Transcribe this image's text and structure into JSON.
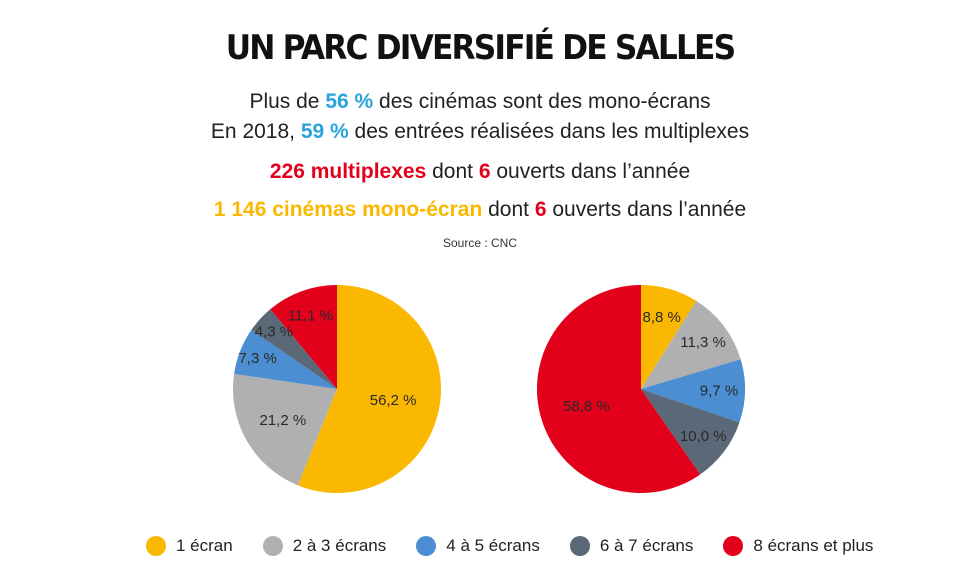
{
  "header": {
    "title": "UN PARC DIVERSIFIÉ DE SALLES",
    "line1": {
      "pre": "Plus de ",
      "highlight": "56 %",
      "post": " des cinémas sont des mono-écrans"
    },
    "line2": {
      "pre": "En 2018, ",
      "highlight": "59 %",
      "post": " des entrées réalisées dans les multiplexes"
    },
    "line3": {
      "highlight": "226 multiplexes",
      "mid": " dont ",
      "count": "6",
      "post": " ouverts dans l’année"
    },
    "line4": {
      "highlight": "1 146 cinémas mono-écran",
      "mid": " dont ",
      "count": "6",
      "post": " ouverts dans l’année"
    },
    "source": "Source : CNC"
  },
  "colors": {
    "highlight_blue": "#29a3dc",
    "highlight_red": "#e2001a",
    "highlight_yellow": "#fbb800"
  },
  "chart_data": [
    {
      "type": "pie",
      "title": "Cinémas par nombre d'écrans",
      "start": "top",
      "direction": "clockwise",
      "categories": [
        "1 écran",
        "2 à 3 écrans",
        "4 à 5 écrans",
        "6 à 7 écrans",
        "8 écrans et plus"
      ],
      "values": [
        56.2,
        21.2,
        7.3,
        4.3,
        11.1
      ],
      "labels": [
        "56,2 %",
        "21,2 %",
        "7,3 %",
        "4,3 %",
        "11,1 %"
      ],
      "colors": [
        "#fbb800",
        "#b1b0b1",
        "#4b8fd2",
        "#5b6877",
        "#e2001a"
      ]
    },
    {
      "type": "pie",
      "title": "Entrées par nombre d'écrans",
      "start": "top",
      "direction": "clockwise",
      "categories": [
        "1 écran",
        "2 à 3 écrans",
        "4 à 5 écrans",
        "6 à 7 écrans",
        "8 écrans et plus"
      ],
      "values": [
        8.8,
        11.3,
        9.7,
        10.0,
        58.8
      ],
      "labels": [
        "8,8 %",
        "11,3 %",
        "9,7 %",
        "10,0 %",
        "58,8 %"
      ],
      "colors": [
        "#fbb800",
        "#b1b0b1",
        "#4b8fd2",
        "#5b6877",
        "#e2001a"
      ]
    }
  ],
  "legend": [
    {
      "label": "1 écran",
      "color": "#fbb800"
    },
    {
      "label": "2 à 3 écrans",
      "color": "#b1b0b1"
    },
    {
      "label": "4 à 5 écrans",
      "color": "#4b8fd2"
    },
    {
      "label": "6 à 7 écrans",
      "color": "#5b6877"
    },
    {
      "label": "8 écrans et plus",
      "color": "#e2001a"
    }
  ],
  "legend_position": "bottom"
}
